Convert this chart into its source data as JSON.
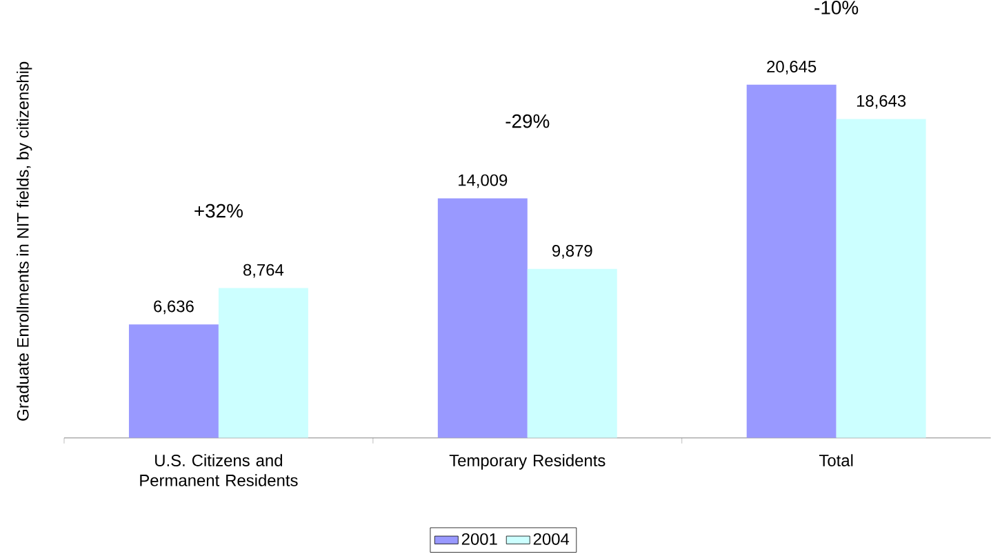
{
  "chart_data": {
    "type": "bar",
    "ylabel": "Graduate Enrollments in NIT fields, by citizenship",
    "categories": [
      "U.S. Citizens and Permanent Residents",
      "Temporary Residents",
      "Total"
    ],
    "series": [
      {
        "name": "2001",
        "color": "#9999ff",
        "values": [
          6636,
          14009,
          20645
        ],
        "value_labels": [
          "6,636",
          "14,009",
          "20,645"
        ]
      },
      {
        "name": "2004",
        "color": "#ccffff",
        "values": [
          8764,
          9879,
          18643
        ],
        "value_labels": [
          "8,764",
          "9,879",
          "18,643"
        ]
      }
    ],
    "annotations": [
      "+32%",
      "-29%",
      "-10%"
    ],
    "legend": "bottom"
  }
}
